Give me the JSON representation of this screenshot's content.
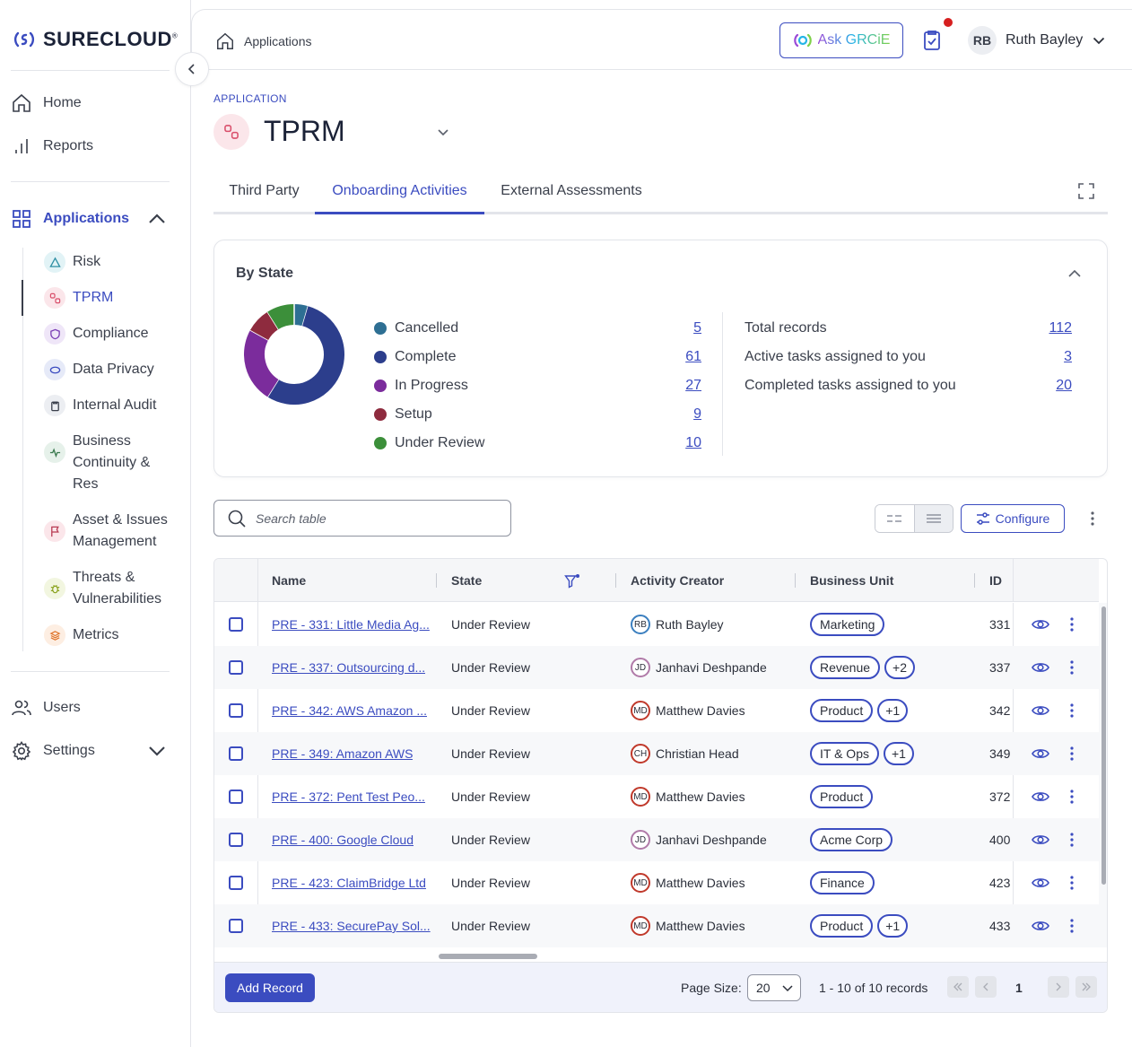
{
  "brand": {
    "name": "SURECLOUD",
    "mark": "®"
  },
  "sidebar": {
    "items": [
      {
        "label": "Home",
        "icon": "home-icon"
      },
      {
        "label": "Reports",
        "icon": "bar-chart-icon"
      },
      {
        "label": "Applications",
        "icon": "grid-icon",
        "active": true
      }
    ],
    "sub_items": [
      {
        "label": "Risk",
        "icon": "triangle-icon",
        "bg": "#e2f3f6"
      },
      {
        "label": "TPRM",
        "icon": "link-nodes-icon",
        "bg": "#fbe6ea",
        "active": true
      },
      {
        "label": "Compliance",
        "icon": "shield-icon",
        "bg": "#efe6f8"
      },
      {
        "label": "Data Privacy",
        "icon": "eye-icon",
        "bg": "#e6eaf8"
      },
      {
        "label": "Internal Audit",
        "icon": "clipboard-icon",
        "bg": "#eceef2"
      },
      {
        "label_lines": [
          "Business",
          "Continuity &",
          "Res"
        ],
        "icon": "pulse-icon",
        "bg": "#e6f1ea"
      },
      {
        "label_lines": [
          "Asset & Issues",
          "Management"
        ],
        "icon": "flag-icon",
        "bg": "#fbe6ea"
      },
      {
        "label_lines": [
          "Threats &",
          "Vulnerabilities"
        ],
        "icon": "bug-icon",
        "bg": "#f2f6e0"
      },
      {
        "label": "Metrics",
        "icon": "layers-icon",
        "bg": "#fdeee2"
      }
    ],
    "bottom_items": [
      {
        "label": "Users",
        "icon": "users-icon"
      },
      {
        "label": "Settings",
        "icon": "gear-icon"
      }
    ]
  },
  "header": {
    "breadcrumb": "Applications",
    "ask_label": "Ask GRCiE",
    "user_initials": "RB",
    "user_name": "Ruth Bayley"
  },
  "app": {
    "label": "APPLICATION",
    "title": "TPRM"
  },
  "tabs": [
    {
      "label": "Third Party"
    },
    {
      "label": "Onboarding Activities",
      "active": true
    },
    {
      "label": "External Assessments"
    }
  ],
  "by_state": {
    "title": "By State",
    "legend": [
      {
        "label": "Cancelled",
        "value": "5",
        "color": "#2e6f93"
      },
      {
        "label": "Complete",
        "value": "61",
        "color": "#2c3e8c"
      },
      {
        "label": "In Progress",
        "value": "27",
        "color": "#7b2c9c"
      },
      {
        "label": "Setup",
        "value": "9",
        "color": "#8e2b3e"
      },
      {
        "label": "Under Review",
        "value": "10",
        "color": "#3c8f3a"
      }
    ],
    "stats": [
      {
        "label": "Total records",
        "value": "112"
      },
      {
        "label": "Active tasks assigned to you",
        "value": "3"
      },
      {
        "label": "Completed tasks assigned to you",
        "value": "20"
      }
    ]
  },
  "toolbar": {
    "search_placeholder": "Search table",
    "configure_label": "Configure"
  },
  "table": {
    "columns": [
      "Name",
      "State",
      "Activity Creator",
      "Business Unit",
      "ID"
    ],
    "rows": [
      {
        "name": "PRE - 331: Little Media Ag...",
        "state": "Under Review",
        "initials": "RB",
        "creator": "Ruth Bayley",
        "units": [
          "Marketing"
        ],
        "more": "",
        "id": "331",
        "avatar_color": "#3b7fbf"
      },
      {
        "name": "PRE - 337: Outsourcing d...",
        "state": "Under Review",
        "initials": "JD",
        "creator": "Janhavi Deshpande",
        "units": [
          "Revenue"
        ],
        "more": "+2",
        "id": "337",
        "avatar_color": "#b07aa8"
      },
      {
        "name": "PRE - 342: AWS Amazon ...",
        "state": "Under Review",
        "initials": "MD",
        "creator": "Matthew Davies",
        "units": [
          "Product"
        ],
        "more": "+1",
        "id": "342",
        "avatar_color": "#c0392b"
      },
      {
        "name": "PRE - 349: Amazon AWS",
        "state": "Under Review",
        "initials": "CH",
        "creator": "Christian Head",
        "units": [
          "IT & Ops"
        ],
        "more": "+1",
        "id": "349",
        "avatar_color": "#c0392b"
      },
      {
        "name": "PRE - 372: Pent Test Peo...",
        "state": "Under Review",
        "initials": "MD",
        "creator": "Matthew Davies",
        "units": [
          "Product"
        ],
        "more": "",
        "id": "372",
        "avatar_color": "#c0392b"
      },
      {
        "name": "PRE - 400: Google Cloud",
        "state": "Under Review",
        "initials": "JD",
        "creator": "Janhavi Deshpande",
        "units": [
          "Acme Corp"
        ],
        "more": "",
        "id": "400",
        "avatar_color": "#b07aa8"
      },
      {
        "name": "PRE - 423: ClaimBridge Ltd",
        "state": "Under Review",
        "initials": "MD",
        "creator": "Matthew Davies",
        "units": [
          "Finance"
        ],
        "more": "",
        "id": "423",
        "avatar_color": "#c0392b"
      },
      {
        "name": "PRE - 433: SecurePay Sol...",
        "state": "Under Review",
        "initials": "MD",
        "creator": "Matthew Davies",
        "units": [
          "Product"
        ],
        "more": "+1",
        "id": "433",
        "avatar_color": "#c0392b"
      }
    ]
  },
  "footer": {
    "add_label": "Add Record",
    "page_size_label": "Page Size:",
    "page_size": "20",
    "record_count": "1 - 10 of 10 records",
    "current_page": "1"
  },
  "colors": {
    "accent": "#3b4cc0",
    "notification": "#d61f1f"
  }
}
